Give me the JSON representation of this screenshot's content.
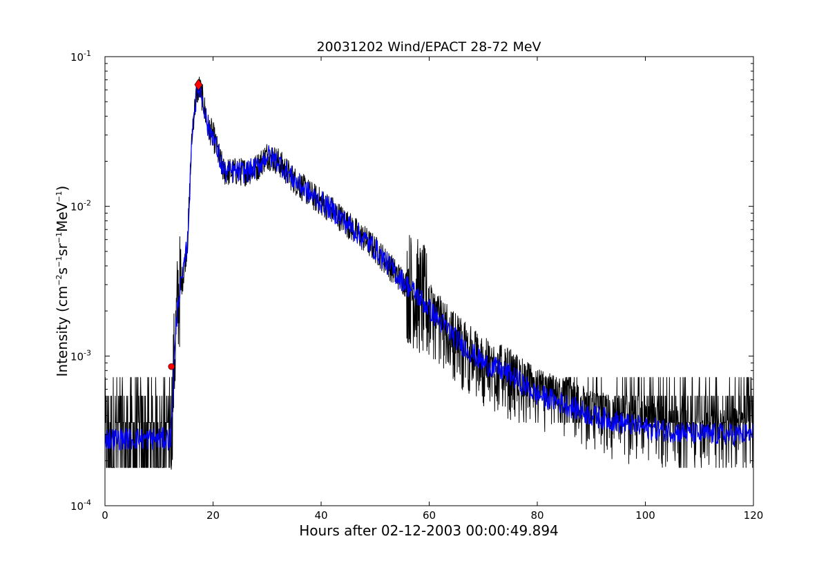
{
  "chart_data": {
    "type": "line",
    "title": "20031202 Wind/EPACT 28-72 MeV",
    "xlabel": "Hours after 02-12-2003 00:00:49.894",
    "ylabel": {
      "prefix": "Intensity (cm",
      "exp1": "−2",
      "mid1": "s",
      "exp2": "−1",
      "mid2": "sr",
      "exp3": "−1",
      "mid3": "MeV",
      "exp4": "−1",
      "suffix": ")"
    },
    "xlim": [
      0,
      120
    ],
    "ylim": [
      0.0001,
      0.1
    ],
    "yscale": "log",
    "grid": false,
    "xticks": [
      "0",
      "20",
      "40",
      "60",
      "80",
      "100",
      "120"
    ],
    "yticks": [
      {
        "base": "10",
        "exp": "-4"
      },
      {
        "base": "10",
        "exp": "-3"
      },
      {
        "base": "10",
        "exp": "-2"
      },
      {
        "base": "10",
        "exp": "-1"
      }
    ],
    "series": [
      {
        "color": "#000000",
        "style": "raw",
        "x": [
          0,
          6,
          12.2,
          12.8,
          13.5,
          14.5,
          15.3,
          16.2,
          17.0,
          17.5,
          18.2,
          19.0,
          20.0,
          21.0,
          22.0,
          24.0,
          26.0,
          28.0,
          30.0,
          32.0,
          35.0,
          38.0,
          42.0,
          46.0,
          50.0,
          54.0,
          58.0,
          62.0,
          66.0,
          70.0,
          75.0,
          80.0,
          85.0,
          90.0,
          100.0,
          110.0,
          120.0
        ],
        "y": [
          0.00028,
          0.00028,
          0.00028,
          0.0009,
          0.0024,
          0.0035,
          0.006,
          0.035,
          0.058,
          0.062,
          0.05,
          0.034,
          0.03,
          0.022,
          0.017,
          0.017,
          0.017,
          0.018,
          0.022,
          0.02,
          0.015,
          0.012,
          0.0095,
          0.007,
          0.0052,
          0.0035,
          0.0025,
          0.0017,
          0.0012,
          0.0009,
          0.00075,
          0.00055,
          0.00048,
          0.0004,
          0.00033,
          0.0003,
          0.0003
        ]
      },
      {
        "color": "#0000ff",
        "style": "smoothed",
        "x": [
          0,
          6,
          12.2,
          12.8,
          13.5,
          14.5,
          15.3,
          16.2,
          17.0,
          17.5,
          18.2,
          19.0,
          20.0,
          21.0,
          22.0,
          24.0,
          26.0,
          28.0,
          30.0,
          32.0,
          35.0,
          38.0,
          42.0,
          46.0,
          50.0,
          54.0,
          58.0,
          62.0,
          66.0,
          70.0,
          75.0,
          80.0,
          85.0,
          90.0,
          100.0,
          110.0,
          120.0
        ],
        "y": [
          0.00028,
          0.00028,
          0.00028,
          0.0009,
          0.0024,
          0.0035,
          0.006,
          0.035,
          0.058,
          0.062,
          0.05,
          0.034,
          0.03,
          0.022,
          0.017,
          0.017,
          0.017,
          0.018,
          0.022,
          0.02,
          0.015,
          0.012,
          0.0095,
          0.007,
          0.0052,
          0.0035,
          0.0025,
          0.0017,
          0.0012,
          0.0009,
          0.00075,
          0.00055,
          0.00048,
          0.0004,
          0.00033,
          0.0003,
          0.0003
        ]
      }
    ],
    "markers": [
      {
        "shape": "circle",
        "color": "#ff0000",
        "x": 12.3,
        "y": 0.00085
      },
      {
        "shape": "diamond",
        "color": "#ff0000",
        "x": 17.3,
        "y": 0.065
      }
    ]
  }
}
